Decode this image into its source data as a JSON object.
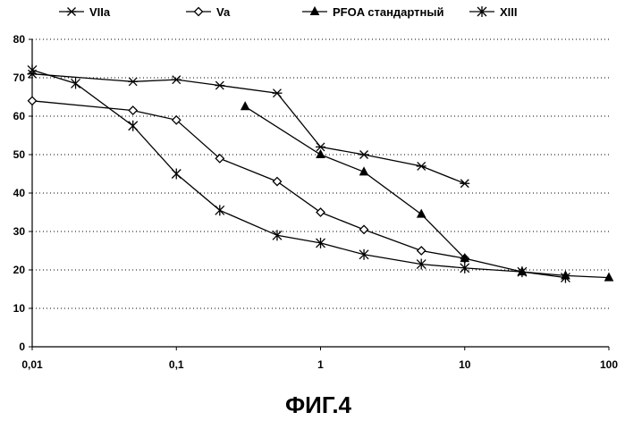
{
  "chart_data": {
    "type": "line",
    "title": "",
    "xlabel": "",
    "ylabel": "",
    "x_scale": "log",
    "xlim": [
      0.01,
      100
    ],
    "ylim": [
      0,
      80
    ],
    "y_ticks": [
      0,
      10,
      20,
      30,
      40,
      50,
      60,
      70,
      80
    ],
    "x_ticks": [
      {
        "value": 0.01,
        "label": "0,01"
      },
      {
        "value": 0.1,
        "label": "0,1"
      },
      {
        "value": 1,
        "label": "1"
      },
      {
        "value": 10,
        "label": "10"
      },
      {
        "value": 100,
        "label": "100"
      }
    ],
    "grid": "horizontal dotted",
    "legend_position": "top",
    "series": [
      {
        "name": "VIIa",
        "marker": "star-x",
        "points": [
          [
            0.01,
            71
          ],
          [
            0.05,
            69
          ],
          [
            0.1,
            69.5
          ],
          [
            0.2,
            68
          ],
          [
            0.5,
            66
          ],
          [
            1,
            52
          ],
          [
            2,
            50
          ],
          [
            5,
            47
          ],
          [
            10,
            42.5
          ]
        ]
      },
      {
        "name": "Va",
        "marker": "diamond",
        "points": [
          [
            0.01,
            64
          ],
          [
            0.05,
            61.5
          ],
          [
            0.1,
            59
          ],
          [
            0.2,
            49
          ],
          [
            0.5,
            43
          ],
          [
            1,
            35
          ],
          [
            2,
            30.5
          ],
          [
            5,
            25
          ],
          [
            10,
            23
          ]
        ]
      },
      {
        "name": "PFOA стандартный",
        "marker": "triangle",
        "points": [
          [
            0.3,
            62.5
          ],
          [
            1,
            50
          ],
          [
            2,
            45.5
          ],
          [
            5,
            34.5
          ],
          [
            10,
            23
          ],
          [
            25,
            19.5
          ],
          [
            50,
            18.5
          ],
          [
            100,
            18
          ]
        ]
      },
      {
        "name": "XIII",
        "marker": "asterisk",
        "points": [
          [
            0.01,
            72
          ],
          [
            0.02,
            68.5
          ],
          [
            0.05,
            57.5
          ],
          [
            0.1,
            45
          ],
          [
            0.2,
            35.5
          ],
          [
            0.5,
            29
          ],
          [
            1,
            27
          ],
          [
            2,
            24
          ],
          [
            5,
            21.5
          ],
          [
            10,
            20.5
          ],
          [
            25,
            19.5
          ],
          [
            50,
            18
          ]
        ]
      }
    ]
  },
  "caption": "ФИГ.4"
}
